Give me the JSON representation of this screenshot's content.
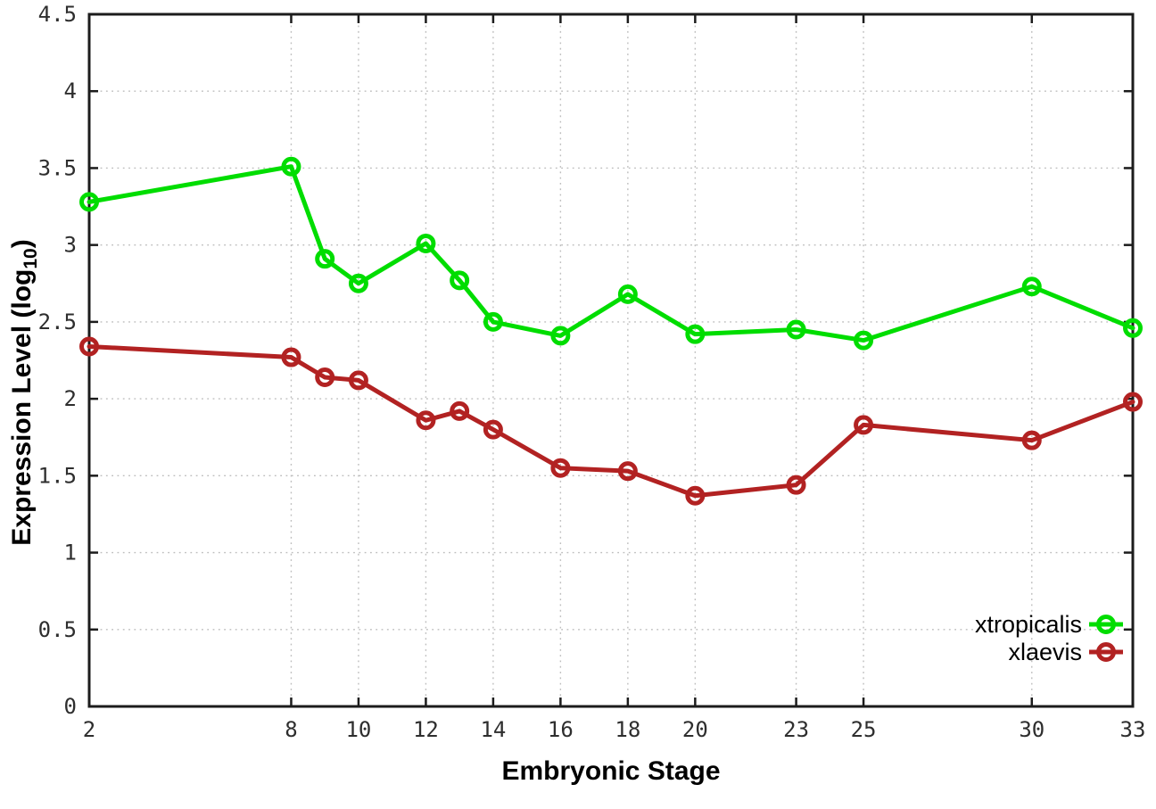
{
  "chart_data": {
    "type": "line",
    "title": "",
    "xlabel": "Embryonic Stage",
    "ylabel": "Expression Level (log10)",
    "ylabel_parts": {
      "pre": "Expression Level (log",
      "sub": "10",
      "post": ")"
    },
    "x": [
      2,
      8,
      9,
      10,
      12,
      13,
      14,
      16,
      18,
      20,
      23,
      25,
      30,
      33
    ],
    "series": [
      {
        "name": "xtropicalis",
        "color": "#00dd00",
        "values": [
          3.28,
          3.51,
          2.91,
          2.75,
          3.01,
          2.77,
          2.5,
          2.41,
          2.68,
          2.42,
          2.45,
          2.38,
          2.73,
          2.46
        ]
      },
      {
        "name": "xlaevis",
        "color": "#b22222",
        "values": [
          2.34,
          2.27,
          2.14,
          2.12,
          1.86,
          1.92,
          1.8,
          1.55,
          1.53,
          1.37,
          1.44,
          1.83,
          1.73,
          1.98
        ]
      }
    ],
    "xlim": [
      2,
      33
    ],
    "ylim": [
      0,
      4.5
    ],
    "xticks": [
      2,
      8,
      10,
      12,
      14,
      16,
      18,
      20,
      23,
      25,
      30,
      33
    ],
    "xtick_labels": [
      "2",
      "8",
      "10",
      "12",
      "14",
      "16",
      "18",
      "20",
      "23",
      "25",
      "30",
      "33"
    ],
    "yticks": [
      0,
      0.5,
      1,
      1.5,
      2,
      2.5,
      3,
      3.5,
      4,
      4.5
    ],
    "ytick_labels": [
      "0",
      "0.5",
      "1",
      "1.5",
      "2",
      "2.5",
      "3",
      "3.5",
      "4",
      "4.5"
    ],
    "grid": true,
    "grid_style": "dotted",
    "legend_position": "bottom-right",
    "legend_entries": [
      "xtropicalis",
      "xlaevis"
    ]
  },
  "colors": {
    "background": "#ffffff",
    "border": "#1c1c1c",
    "grid": "#bdbdbd",
    "tick_text": "#2e2e2e",
    "series_green": "#00dd00",
    "series_red": "#b22222"
  }
}
